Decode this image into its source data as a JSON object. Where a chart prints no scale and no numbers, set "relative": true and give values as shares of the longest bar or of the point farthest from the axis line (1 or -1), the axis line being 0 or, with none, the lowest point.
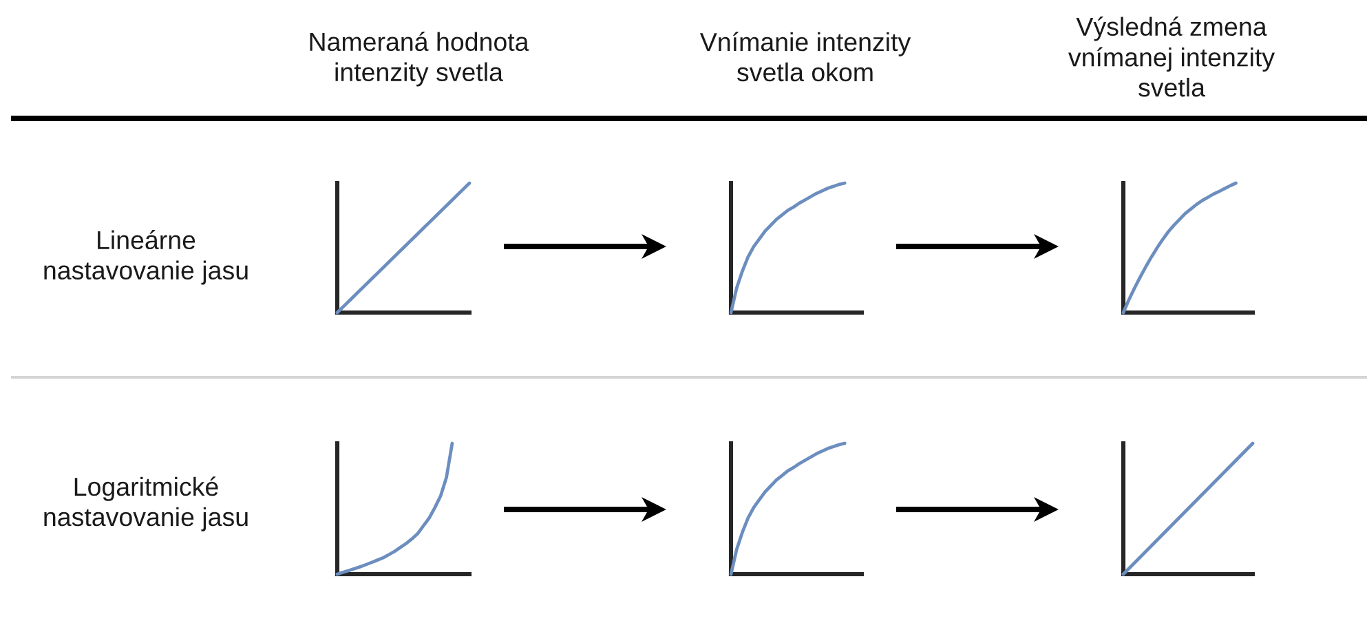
{
  "chart_data": [
    {
      "type": "line",
      "title": "Nameraná hodnota\nintenzity svetla",
      "ylabel": "Lineárne\nnastavovanie jasu",
      "relative": true,
      "categories": [
        null,
        null,
        null,
        null,
        null,
        null,
        null,
        null,
        null,
        null,
        null,
        null,
        null,
        null,
        null,
        null,
        null,
        null,
        null,
        null,
        null
      ],
      "series": [
        {
          "color": "#6c8ebf",
          "values": [
            0,
            0.05,
            0.1,
            0.15,
            0.2,
            0.25,
            0.3,
            0.35,
            0.4,
            0.45,
            0.5,
            0.55,
            0.6,
            0.65,
            0.7,
            0.75,
            0.8,
            0.85,
            0.9,
            0.95,
            1
          ]
        }
      ]
    },
    {
      "type": "line",
      "title": "Vnímanie intenzity\nsvetla okom",
      "relative": true,
      "categories": [
        null,
        null,
        null,
        null,
        null,
        null,
        null,
        null,
        null,
        null,
        null,
        null,
        null,
        null,
        null,
        null,
        null,
        null,
        null,
        null,
        null,
        null,
        null,
        null
      ],
      "series": [
        {
          "color": "#6c8ebf",
          "values": [
            0,
            0.19,
            0.32,
            0.43,
            0.51,
            0.57,
            0.63,
            0.675,
            0.72,
            0.755,
            0.79,
            0.815,
            0.845,
            0.87,
            0.895,
            0.92,
            0.94,
            0.96,
            0.975,
            0.99,
            1,
            null,
            null,
            null
          ]
        }
      ]
    },
    {
      "type": "line",
      "title": "Výsledná zmena\nvnímanej intenzity\nsvetla",
      "relative": true,
      "categories": [
        null,
        null,
        null,
        null,
        null,
        null,
        null,
        null,
        null,
        null,
        null,
        null,
        null,
        null,
        null,
        null,
        null,
        null,
        null,
        null,
        null,
        null,
        null,
        null
      ],
      "series": [
        {
          "color": "#6c8ebf",
          "values": [
            0,
            0.1,
            0.19,
            0.275,
            0.355,
            0.43,
            0.5,
            0.565,
            0.625,
            0.675,
            0.72,
            0.765,
            0.8,
            0.835,
            0.865,
            0.89,
            0.915,
            0.935,
            0.958,
            0.98,
            1,
            null,
            null,
            null
          ]
        }
      ]
    },
    {
      "type": "line",
      "ylabel": "Logaritmické\nnastavovanie jasu",
      "relative": true,
      "categories": [
        null,
        null,
        null,
        null,
        null,
        null,
        null,
        null,
        null,
        null,
        null,
        null,
        null,
        null,
        null,
        null,
        null,
        null,
        null,
        null,
        null,
        null,
        null,
        null
      ],
      "series": [
        {
          "color": "#6c8ebf",
          "values": [
            0,
            0.014,
            0.028,
            0.042,
            0.057,
            0.073,
            0.09,
            0.108,
            0.126,
            0.15,
            0.175,
            0.205,
            0.235,
            0.27,
            0.31,
            0.37,
            0.43,
            0.51,
            0.6,
            0.74,
            1,
            null,
            null,
            null
          ]
        }
      ]
    },
    {
      "type": "line",
      "relative": true,
      "categories": [
        null,
        null,
        null,
        null,
        null,
        null,
        null,
        null,
        null,
        null,
        null,
        null,
        null,
        null,
        null,
        null,
        null,
        null,
        null,
        null,
        null,
        null,
        null,
        null
      ],
      "series": [
        {
          "color": "#6c8ebf",
          "values": [
            0,
            0.19,
            0.32,
            0.43,
            0.51,
            0.57,
            0.63,
            0.675,
            0.72,
            0.755,
            0.79,
            0.815,
            0.845,
            0.87,
            0.895,
            0.92,
            0.94,
            0.96,
            0.975,
            0.99,
            1,
            null,
            null,
            null
          ]
        }
      ]
    },
    {
      "type": "line",
      "relative": true,
      "categories": [
        null,
        null,
        null,
        null,
        null,
        null,
        null,
        null,
        null,
        null,
        null,
        null,
        null,
        null,
        null,
        null,
        null,
        null,
        null,
        null,
        null
      ],
      "series": [
        {
          "color": "#6c8ebf",
          "values": [
            0,
            0.05,
            0.1,
            0.15,
            0.2,
            0.25,
            0.3,
            0.35,
            0.4,
            0.45,
            0.5,
            0.55,
            0.6,
            0.65,
            0.7,
            0.75,
            0.8,
            0.85,
            0.9,
            0.95,
            1
          ]
        }
      ]
    }
  ]
}
